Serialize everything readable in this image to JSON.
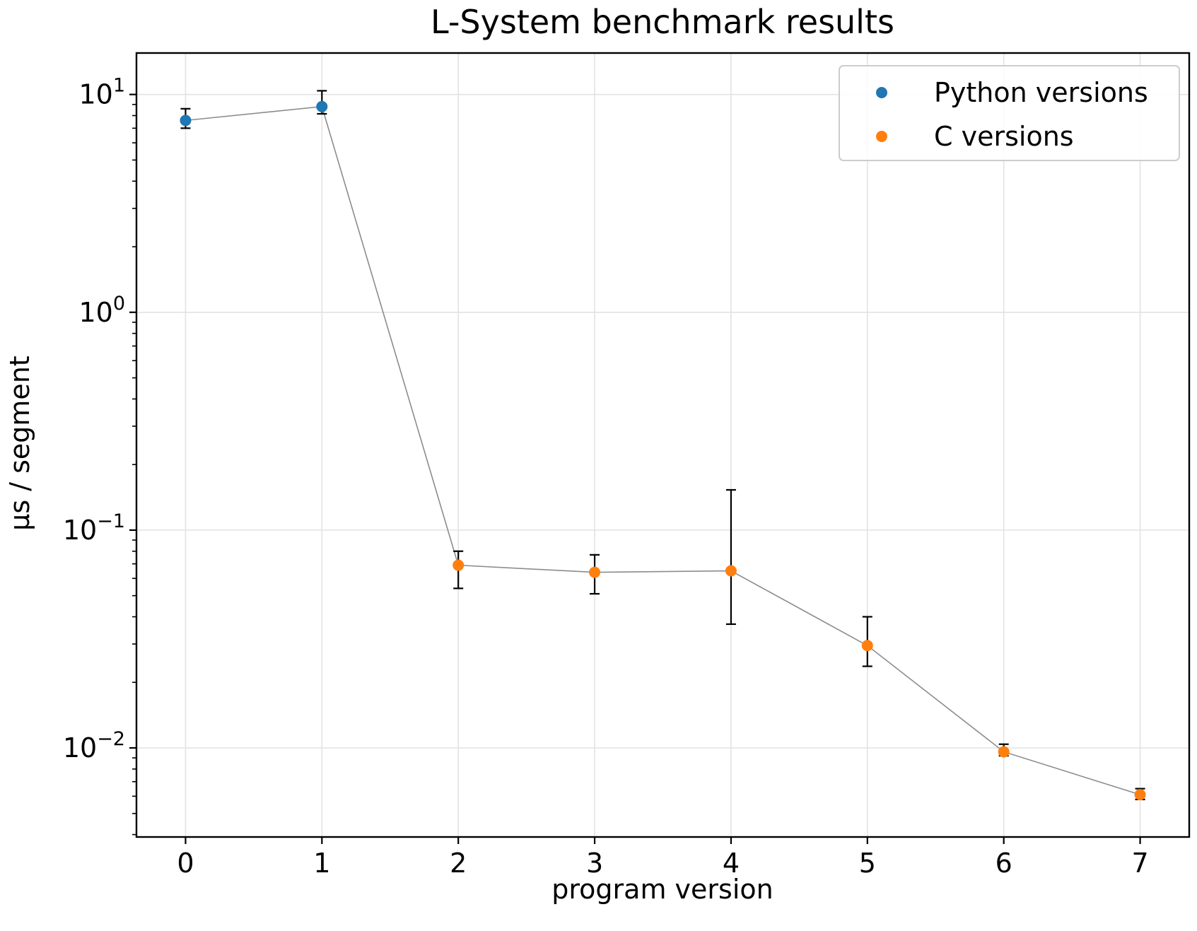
{
  "chart_data": {
    "type": "scatter",
    "title": "L-System benchmark results",
    "xlabel": "program version",
    "ylabel": "μs / segment",
    "yscale": "log",
    "xlim": [
      -0.36,
      7.36
    ],
    "ylim": [
      0.0039,
      15.5
    ],
    "xticks": [
      "0",
      "1",
      "2",
      "3",
      "4",
      "5",
      "6",
      "7"
    ],
    "yticks": [
      {
        "value": 0.01,
        "base": "10",
        "exp": "−2"
      },
      {
        "value": 0.1,
        "base": "10",
        "exp": "−1"
      },
      {
        "value": 1,
        "base": "10",
        "exp": "0"
      },
      {
        "value": 10,
        "base": "10",
        "exp": "1"
      }
    ],
    "grid": true,
    "legend_position": "top-right",
    "connecting_line_color": "#8c8c8c",
    "series": [
      {
        "name": "Python versions",
        "color": "#1f77b4",
        "x": [
          0,
          1
        ],
        "y": [
          7.6,
          8.8
        ],
        "err_low": [
          7.0,
          8.15
        ],
        "err_high": [
          8.6,
          10.4
        ]
      },
      {
        "name": "C versions",
        "color": "#ff7f0e",
        "x": [
          2,
          3,
          4,
          5,
          6,
          7
        ],
        "y": [
          0.069,
          0.064,
          0.065,
          0.0295,
          0.0096,
          0.0061
        ],
        "err_low": [
          0.054,
          0.051,
          0.037,
          0.0237,
          0.0092,
          0.0058
        ],
        "err_high": [
          0.08,
          0.077,
          0.153,
          0.04,
          0.0104,
          0.0065
        ]
      }
    ]
  }
}
